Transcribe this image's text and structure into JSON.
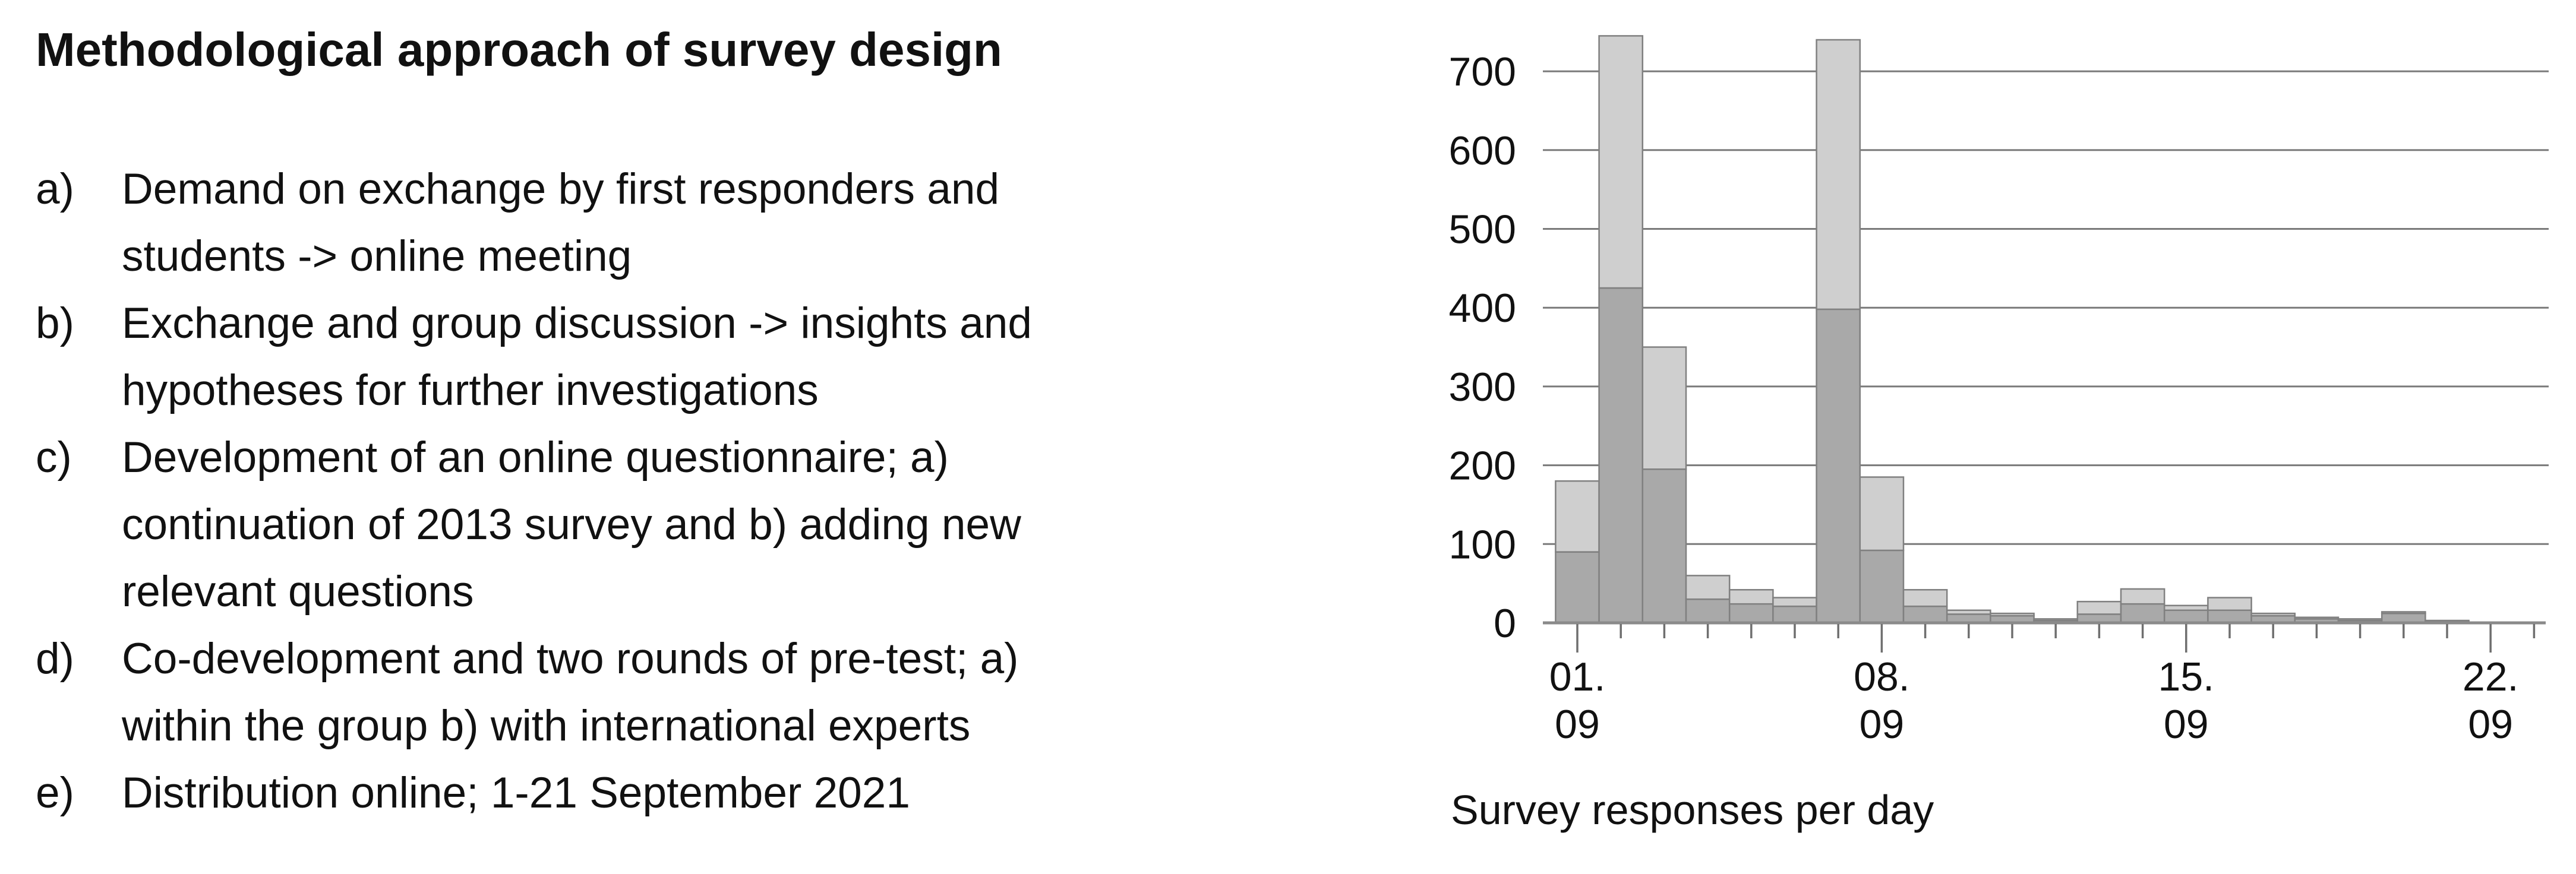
{
  "slide": {
    "title": "Methodological approach of survey design",
    "list_items": [
      {
        "marker": "a)",
        "lines": [
          "Demand on exchange by first responders and",
          "students -> online meeting"
        ]
      },
      {
        "marker": "b)",
        "lines": [
          "Exchange and group discussion -> insights and",
          "hypotheses for further investigations"
        ]
      },
      {
        "marker": "c)",
        "lines": [
          "Development of an online questionnaire; a)",
          "continuation of 2013 survey and b) adding new",
          "relevant questions"
        ]
      },
      {
        "marker": "d)",
        "lines": [
          "Co-development and two rounds of pre-test; a)",
          "within the group b) with international experts"
        ]
      },
      {
        "marker": "e)",
        "lines": [
          "Distribution online; 1-21 September 2021"
        ]
      }
    ]
  },
  "chart_data": {
    "type": "bar",
    "stacked": true,
    "title": "",
    "caption": "Survey responses per day",
    "xlabel": "",
    "ylabel": "",
    "categories": [
      "01.09",
      "02.09",
      "03.09",
      "04.09",
      "05.09",
      "06.09",
      "07.09",
      "08.09",
      "09.09",
      "10.09",
      "11.09",
      "12.09",
      "13.09",
      "14.09",
      "15.09",
      "16.09",
      "17.09",
      "18.09",
      "19.09",
      "20.09",
      "21.09",
      "22.09"
    ],
    "series": [
      {
        "name": "responses-lower-segment",
        "color": "#a9a9a9",
        "values": [
          90,
          425,
          195,
          30,
          24,
          21,
          398,
          92,
          21,
          11,
          9,
          3,
          11,
          24,
          16,
          16,
          9,
          5,
          3,
          12,
          2,
          0
        ]
      },
      {
        "name": "responses-upper-segment",
        "color": "#cfcfcf",
        "values": [
          90,
          320,
          155,
          30,
          18,
          11,
          342,
          93,
          21,
          5,
          3,
          2,
          16,
          19,
          6,
          16,
          3,
          2,
          2,
          2,
          1,
          0
        ]
      }
    ],
    "totals": [
      180,
      745,
      350,
      60,
      42,
      32,
      740,
      185,
      42,
      16,
      12,
      5,
      27,
      43,
      22,
      32,
      12,
      7,
      5,
      14,
      3,
      0
    ],
    "yticks": [
      0,
      100,
      200,
      300,
      400,
      500,
      600,
      700
    ],
    "ylim": [
      0,
      750
    ],
    "grid": true,
    "legend": "none",
    "x_major_labels": [
      {
        "category": "01.09",
        "lines": [
          "01.",
          "09"
        ]
      },
      {
        "category": "08.09",
        "lines": [
          "08.",
          "09"
        ]
      },
      {
        "category": "15.09",
        "lines": [
          "15.",
          "09"
        ]
      },
      {
        "category": "22.09",
        "lines": [
          "22.",
          "09"
        ]
      }
    ]
  },
  "colors": {
    "bar_dark": "#a9a9a9",
    "bar_light": "#cfcfcf",
    "bar_border": "#808080",
    "gridline": "#7a7a7a",
    "axis": "#8a8a8a",
    "tick": "#6f6f6f",
    "text": "#111111",
    "background": "#ffffff"
  }
}
